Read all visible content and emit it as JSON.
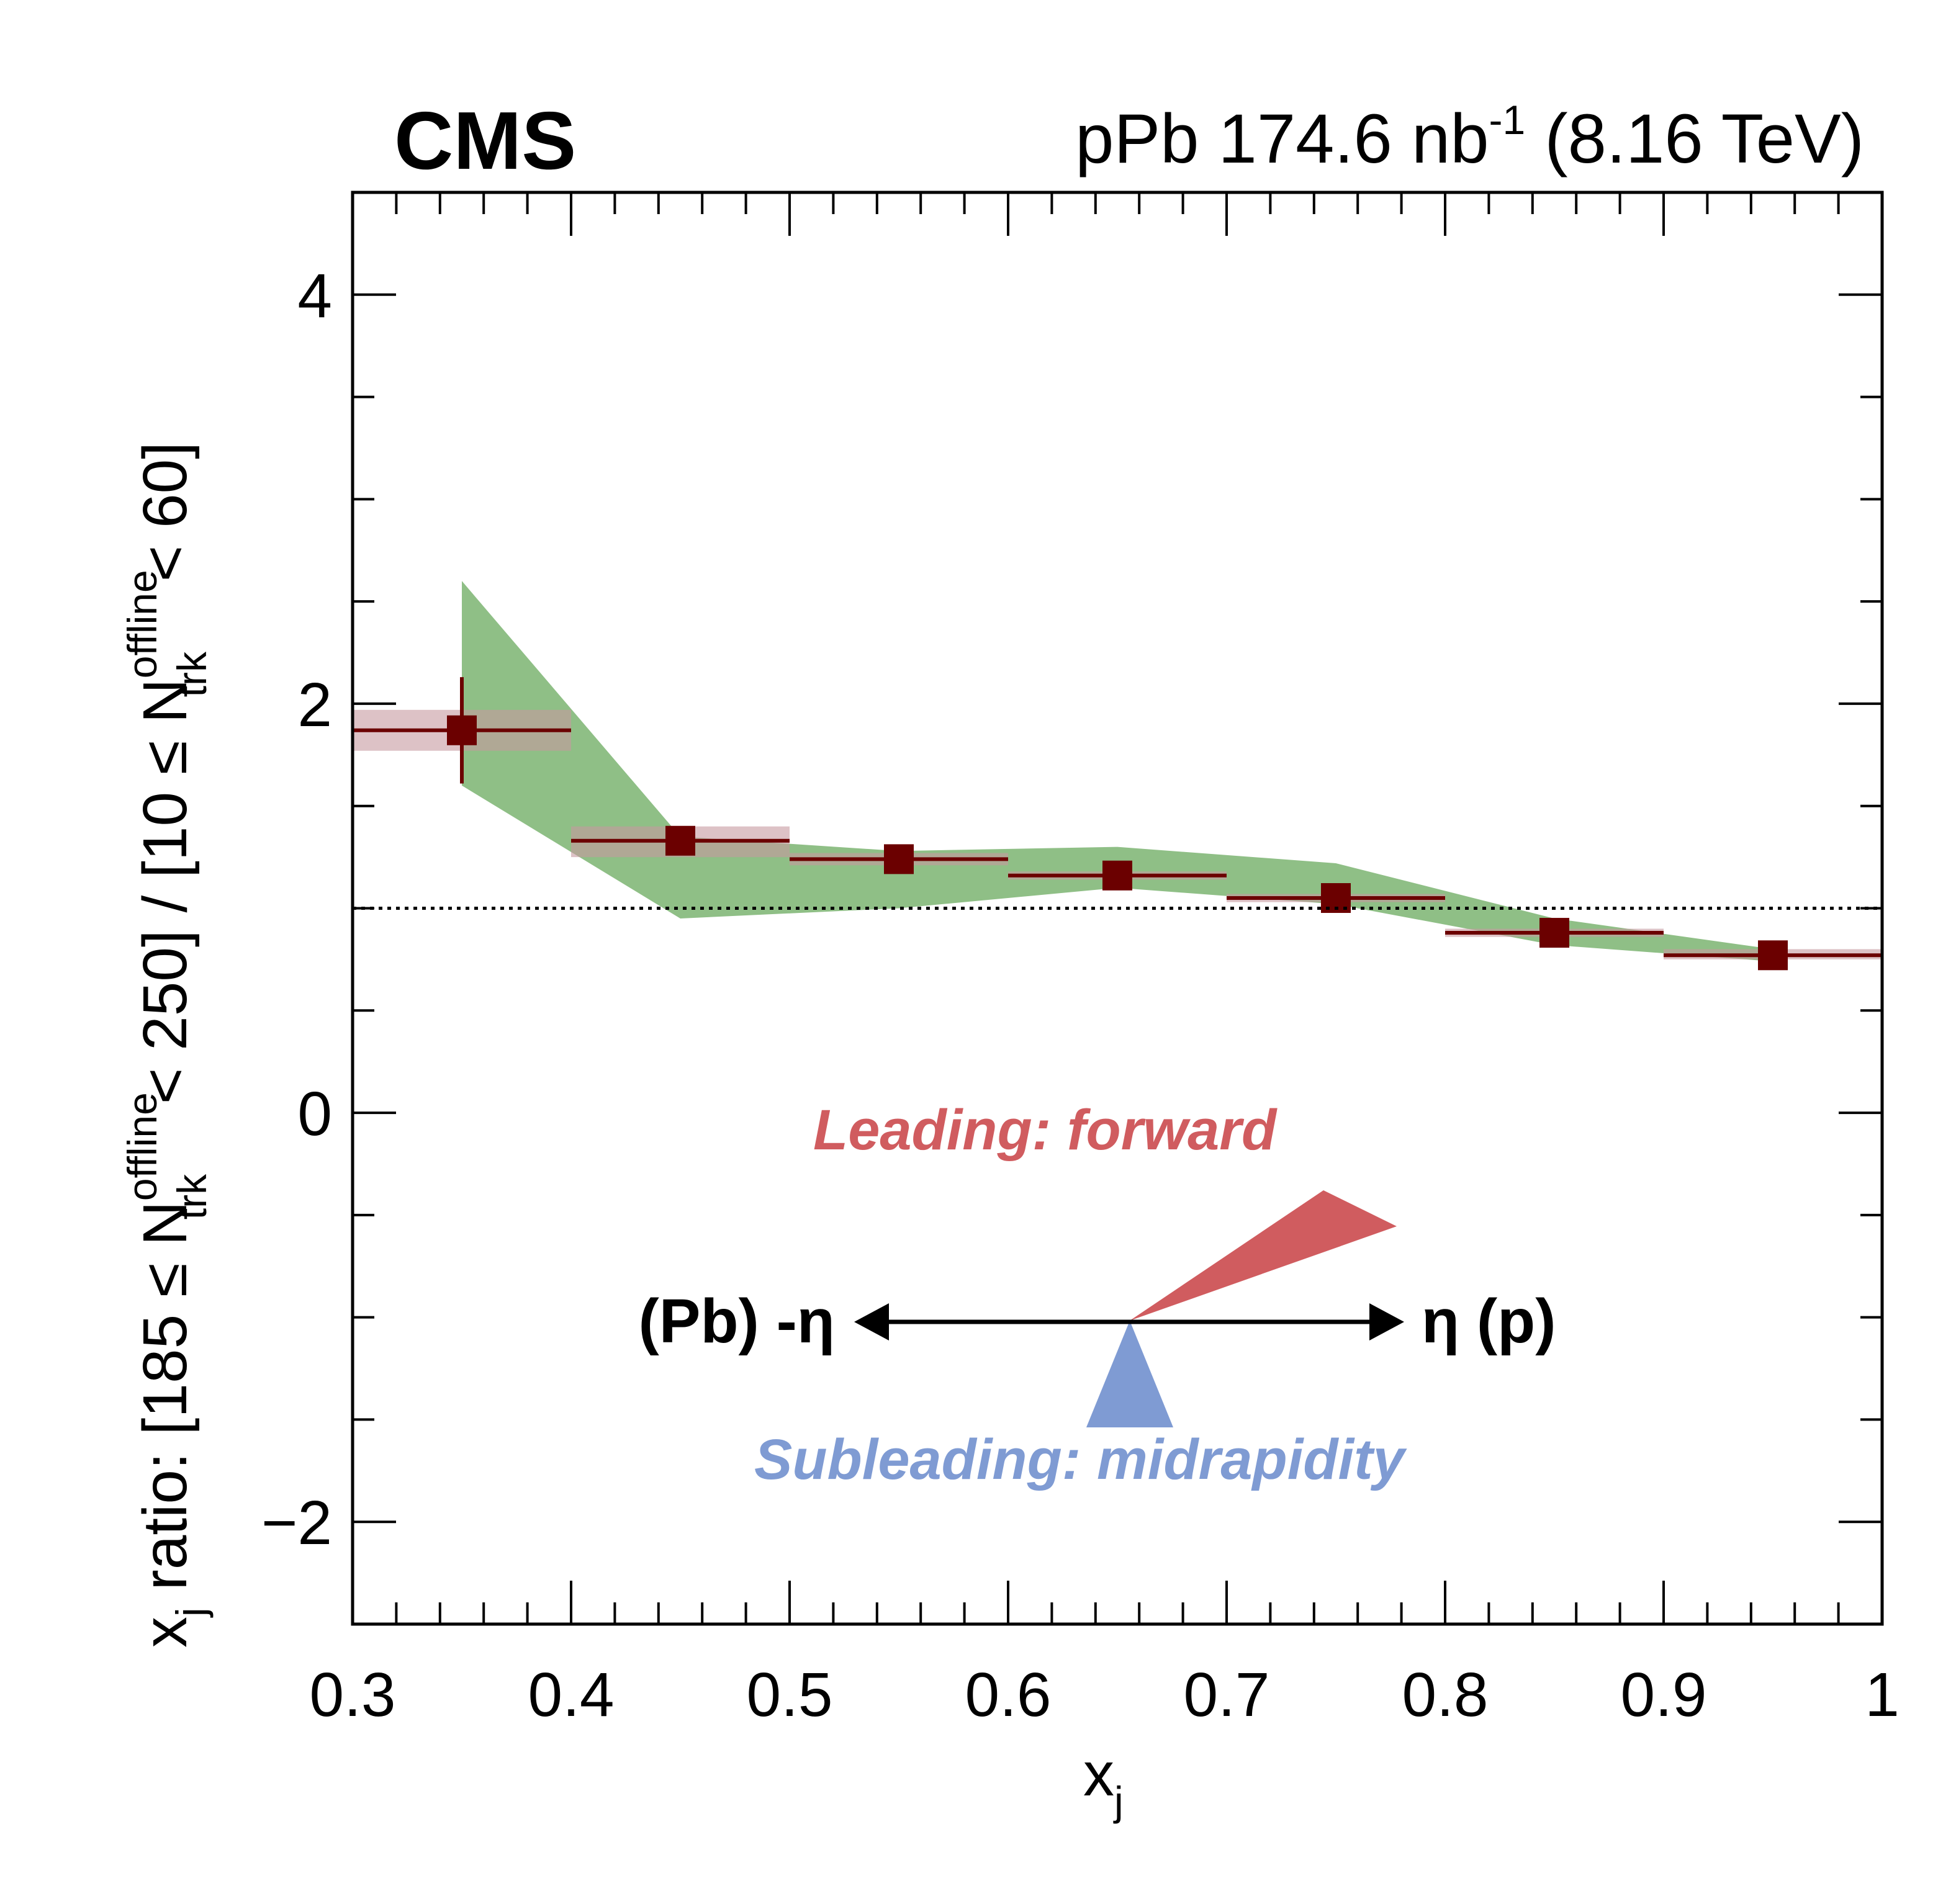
{
  "chart_data": {
    "type": "scatter",
    "experiment_label": "CMS",
    "lumi_label": {
      "pre": "pPb 174.6 nb",
      "exp": "-1",
      "post": " (8.16 TeV)"
    },
    "xlabel": {
      "main": "x",
      "sub": "j"
    },
    "ylabel": {
      "p1": "x",
      "p1_sub": "j",
      "p2": " ratio: [185 ≤ N",
      "sup1": "offline",
      "sub1": "trk",
      "p3": " < 250] / [10 ≤ N",
      "sup2": "offline",
      "sub2": "trk",
      "p4": " < 60]"
    },
    "xlim": [
      0.3,
      1.0
    ],
    "ylim": [
      -2.5,
      4.5
    ],
    "x_ticks": [
      0.3,
      0.4,
      0.5,
      0.6,
      0.7,
      0.8,
      0.9,
      1.0
    ],
    "x_tick_labels": [
      "0.3",
      "0.4",
      "0.5",
      "0.6",
      "0.7",
      "0.8",
      "0.9",
      "1"
    ],
    "y_ticks": [
      -2,
      0,
      2,
      4
    ],
    "y_tick_labels": [
      "−2",
      "0",
      "2",
      "4"
    ],
    "reference_line": 1.0,
    "series": [
      {
        "points": [
          {
            "x": 0.35,
            "xlo": 0.3,
            "xhi": 0.4,
            "y": 1.87,
            "stat": 0.26,
            "sys_lo": 1.77,
            "sys_hi": 1.97
          },
          {
            "x": 0.45,
            "xlo": 0.4,
            "xhi": 0.5,
            "y": 1.33,
            "stat": 0.06,
            "sys_lo": 1.25,
            "sys_hi": 1.4
          },
          {
            "x": 0.55,
            "xlo": 0.5,
            "xhi": 0.6,
            "y": 1.24,
            "stat": 0.03,
            "sys_lo": 1.21,
            "sys_hi": 1.27
          },
          {
            "x": 0.65,
            "xlo": 0.6,
            "xhi": 0.7,
            "y": 1.16,
            "stat": 0.02,
            "sys_lo": 1.14,
            "sys_hi": 1.18
          },
          {
            "x": 0.75,
            "xlo": 0.7,
            "xhi": 0.8,
            "y": 1.05,
            "stat": 0.02,
            "sys_lo": 1.03,
            "sys_hi": 1.07
          },
          {
            "x": 0.85,
            "xlo": 0.8,
            "xhi": 0.9,
            "y": 0.88,
            "stat": 0.02,
            "sys_lo": 0.86,
            "sys_hi": 0.9
          },
          {
            "x": 0.95,
            "xlo": 0.9,
            "xhi": 1.0,
            "y": 0.77,
            "stat": 0.02,
            "sys_lo": 0.75,
            "sys_hi": 0.8
          }
        ]
      }
    ],
    "band": {
      "x": [
        0.35,
        0.45,
        0.55,
        0.65,
        0.75,
        0.85,
        0.95
      ],
      "lo": [
        1.6,
        0.95,
        1.0,
        1.1,
        1.02,
        0.82,
        0.74
      ],
      "hi": [
        2.6,
        1.35,
        1.28,
        1.3,
        1.22,
        0.95,
        0.8
      ]
    },
    "colors": {
      "marker": "#6b0000",
      "sys_box": "#c79aa0",
      "band": "#8fbf86",
      "leading": "#d05c5f",
      "subleading": "#7f9bd3"
    },
    "annotations": {
      "leading": "Leading: forward",
      "subleading": "Subleading: midrapidity",
      "left_arrow": "(Pb) -η",
      "right_arrow": "η (p)"
    }
  }
}
